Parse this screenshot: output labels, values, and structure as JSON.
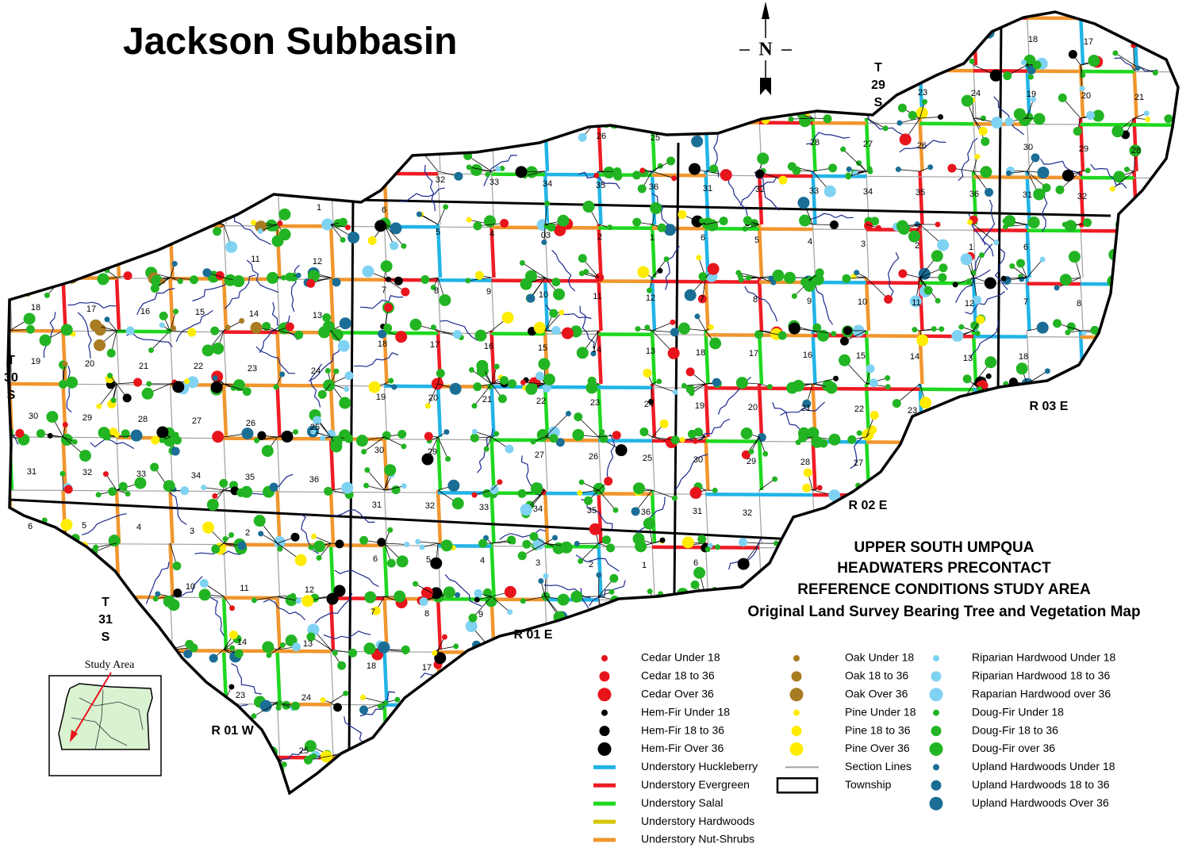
{
  "title": "Jackson Subbasin",
  "north": "N",
  "township_labels": [
    [
      "T",
      "29",
      "S"
    ],
    [
      "T",
      "30",
      "S"
    ],
    [
      "T",
      "31",
      "S"
    ]
  ],
  "range_labels": [
    "R 01 W",
    "R 01 E",
    "R 02 E",
    "R 03 E"
  ],
  "title_block": [
    "UPPER SOUTH UMPQUA",
    "HEADWATERS PRECONTACT",
    "REFERENCE CONDITIONS STUDY AREA",
    "Original Land Survey Bearing Tree and Vegetation Map"
  ],
  "inset_label": "Study Area",
  "sections": [
    "18",
    "17",
    "16",
    "15",
    "14",
    "13",
    "12",
    "11",
    "19",
    "20",
    "21",
    "22",
    "23",
    "24",
    "29",
    "28",
    "27",
    "26",
    "25",
    "32",
    "33",
    "34",
    "35",
    "36",
    "5",
    "4",
    "3",
    "2",
    "10",
    "11",
    "12",
    "14",
    "13",
    "23",
    "24",
    "25",
    "6",
    "5",
    "4",
    "03",
    "2",
    "1",
    "7",
    "8",
    "9",
    "10",
    "11",
    "12",
    "18",
    "17",
    "16",
    "15",
    "14",
    "13",
    "19",
    "20",
    "21",
    "22",
    "23",
    "24",
    "30",
    "29",
    "27",
    "26",
    "25",
    "31",
    "32",
    "33",
    "34",
    "35",
    "36",
    "6",
    "5",
    "4",
    "3",
    "2",
    "1",
    "7",
    "8",
    "9",
    "18",
    "17",
    "6",
    "5",
    "4",
    "3",
    "2",
    "1",
    "6",
    "7",
    "8",
    "9",
    "10",
    "11",
    "12",
    "7",
    "8",
    "18",
    "17",
    "16",
    "15",
    "14",
    "13",
    "18",
    "19",
    "20",
    "21",
    "22",
    "23",
    "30",
    "29",
    "28",
    "27",
    "31",
    "32",
    "6",
    "5",
    "32",
    "33",
    "34",
    "35",
    "36",
    "31",
    "32",
    "33",
    "34",
    "35",
    "36",
    "31",
    "32",
    "26",
    "25",
    "28",
    "27",
    "26",
    "30",
    "29",
    "28",
    "23",
    "24",
    "19",
    "20",
    "21",
    "18",
    "17",
    "1",
    "30",
    "31",
    "6"
  ],
  "legend": [
    [
      {
        "label": "Cedar Under 18",
        "symbol": "dot-s",
        "color": "#e8141c"
      },
      {
        "label": "Cedar 18 to 36",
        "symbol": "dot-m",
        "color": "#e8141c"
      },
      {
        "label": "Cedar Over 36",
        "symbol": "dot-l",
        "color": "#e8141c"
      },
      {
        "label": "Hem-Fir Under 18",
        "symbol": "dot-s",
        "color": "#000000"
      },
      {
        "label": "Hem-Fir 18 to 36",
        "symbol": "dot-m",
        "color": "#000000"
      },
      {
        "label": "Hem-Fir Over 36",
        "symbol": "dot-l",
        "color": "#000000"
      },
      {
        "label": "Understory Huckleberry",
        "symbol": "line",
        "color": "#22b4e6"
      },
      {
        "label": "Understory Evergreen",
        "symbol": "line",
        "color": "#ee1c24"
      },
      {
        "label": "Understory Salal",
        "symbol": "line",
        "color": "#1fd81f"
      },
      {
        "label": "Understory Hardwoods",
        "symbol": "line",
        "color": "#d4c800"
      },
      {
        "label": "Understory Nut-Shrubs",
        "symbol": "line",
        "color": "#f0962e"
      }
    ],
    [
      {
        "label": "Oak Under 18",
        "symbol": "dot-s",
        "color": "#a87c22"
      },
      {
        "label": "Oak 18 to 36",
        "symbol": "dot-m",
        "color": "#a87c22"
      },
      {
        "label": "Oak Over 36",
        "symbol": "dot-l",
        "color": "#a87c22"
      },
      {
        "label": "Pine Under 18",
        "symbol": "dot-s",
        "color": "#ffec00"
      },
      {
        "label": "Pine 18 to 36",
        "symbol": "dot-m",
        "color": "#ffec00"
      },
      {
        "label": "Pine Over 36",
        "symbol": "dot-l",
        "color": "#ffec00"
      },
      {
        "label": "Section Lines",
        "symbol": "thin",
        "color": "#a0a0a0"
      },
      {
        "label": "Township",
        "symbol": "box",
        "color": "#000000"
      }
    ],
    [
      {
        "label": "Riparian Hardwood Under 18",
        "symbol": "dot-s",
        "color": "#7fd2f2"
      },
      {
        "label": "Riparian Hardwood 18 to 36",
        "symbol": "dot-m",
        "color": "#7fd2f2"
      },
      {
        "label": "Raparian Hardwood over 36",
        "symbol": "dot-l",
        "color": "#7fd2f2"
      },
      {
        "label": "Doug-Fir Under 18",
        "symbol": "dot-s",
        "color": "#22b422"
      },
      {
        "label": "Doug-Fir 18 to 36",
        "symbol": "dot-m",
        "color": "#22b422"
      },
      {
        "label": "Doug-Fir over 36",
        "symbol": "dot-l",
        "color": "#22b422"
      },
      {
        "label": "Upland Hardwoods Under 18",
        "symbol": "dot-s",
        "color": "#1a6e96"
      },
      {
        "label": "Upland Hardwoods 18 to 36",
        "symbol": "dot-m",
        "color": "#1a6e96"
      },
      {
        "label": "Upland Hardwoods Over 36",
        "symbol": "dot-l",
        "color": "#1a6e96"
      }
    ]
  ]
}
